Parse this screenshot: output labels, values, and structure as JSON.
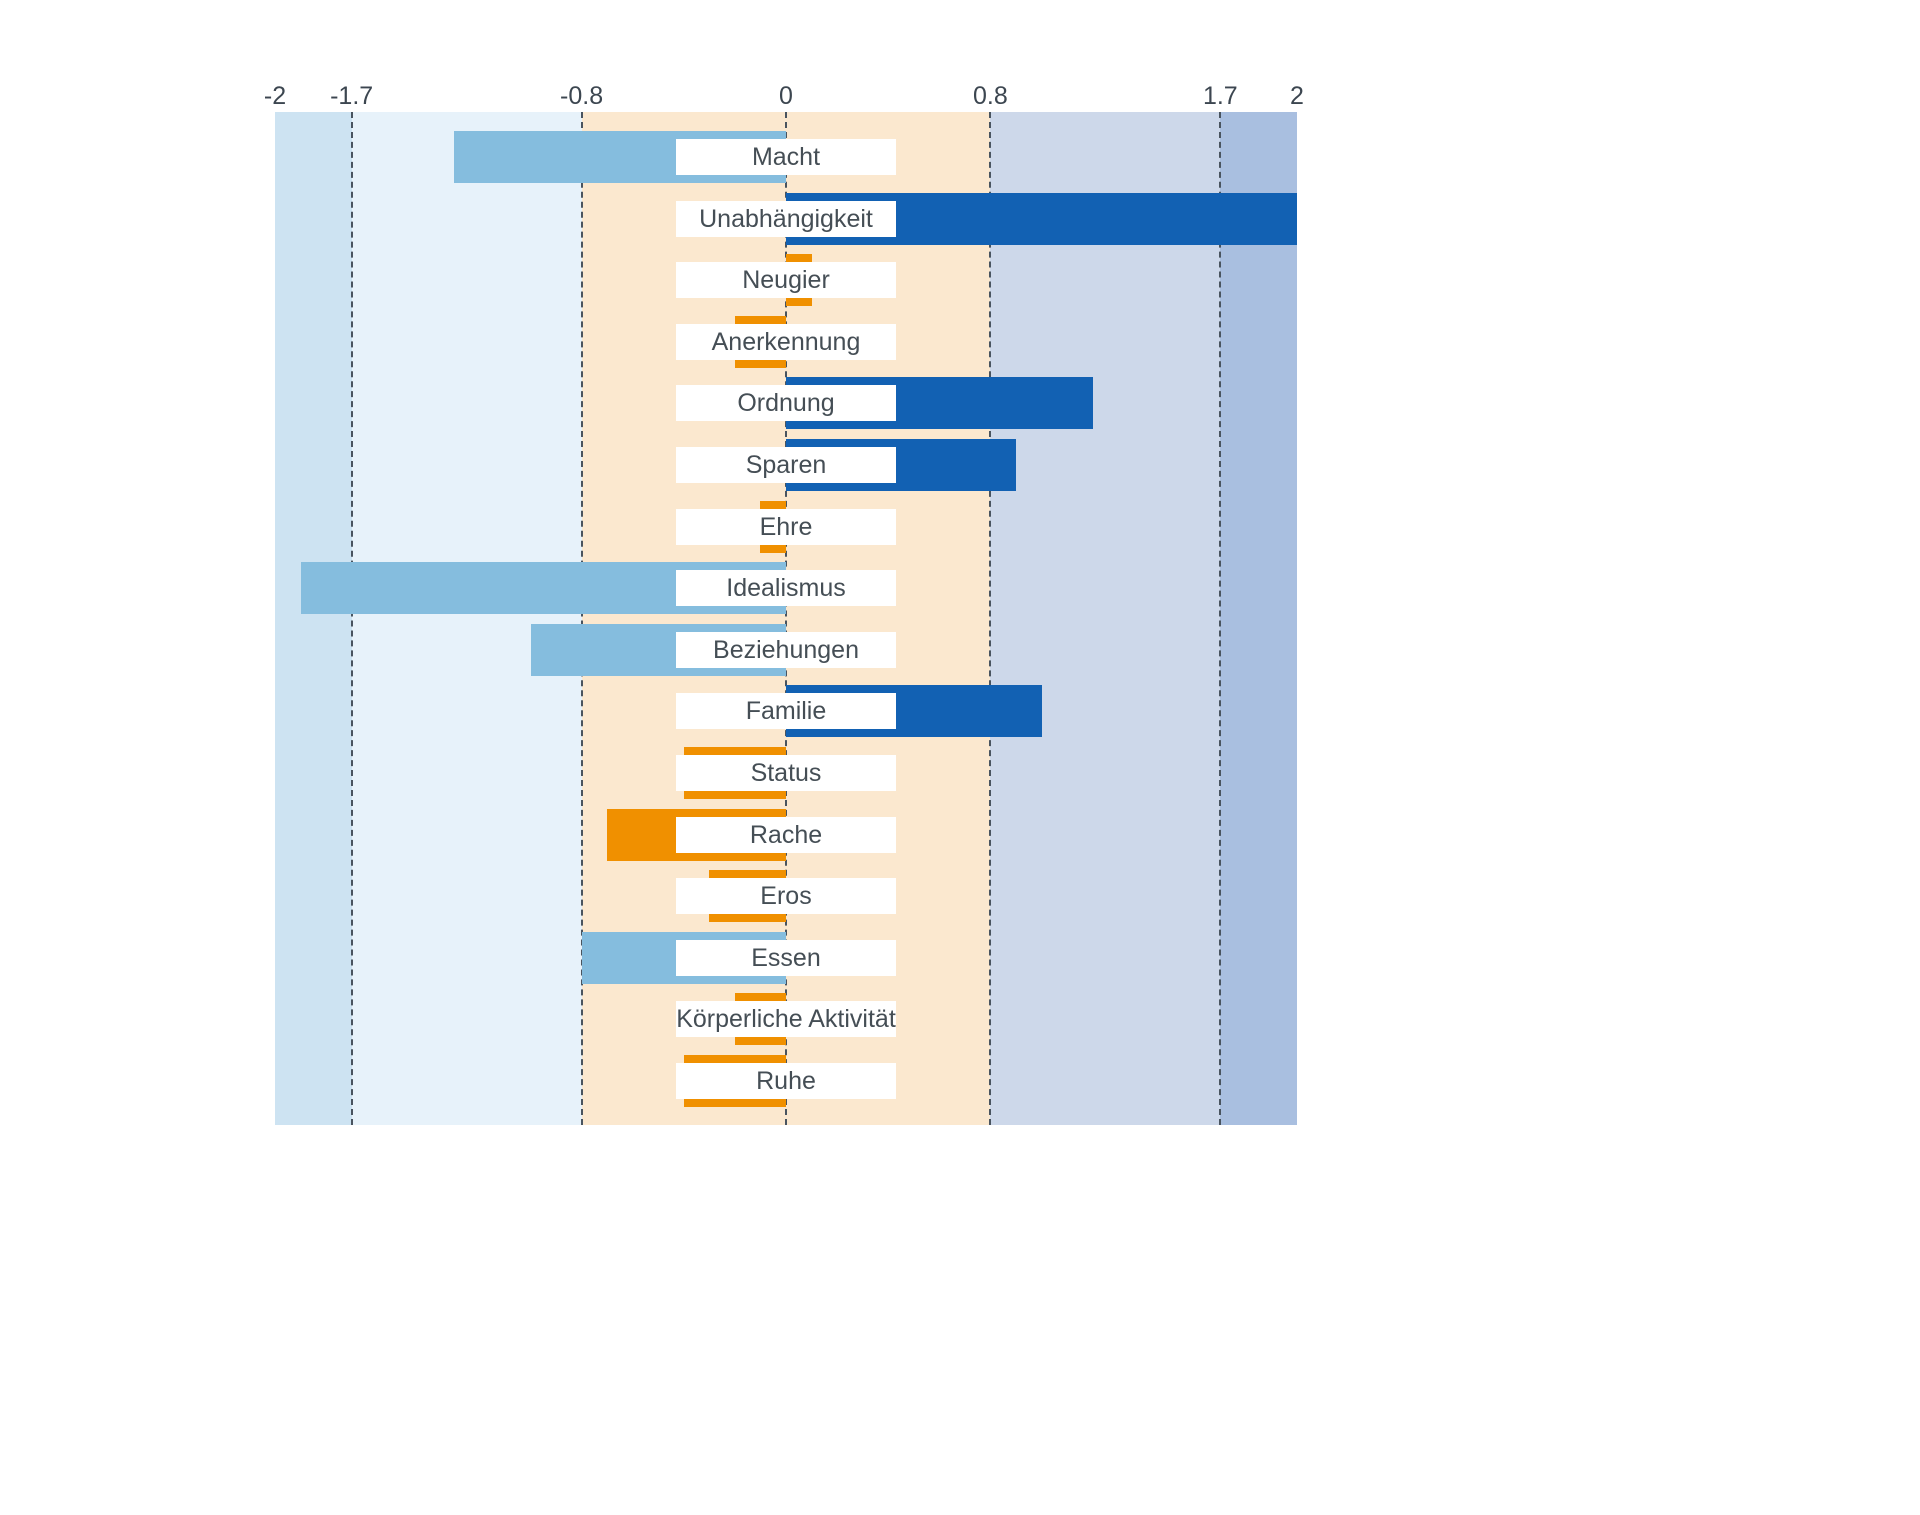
{
  "chart_data": {
    "type": "bar",
    "orientation": "horizontal",
    "title": "",
    "xlabel": "",
    "ylabel": "",
    "xlim": [
      -2,
      2
    ],
    "x_ticks": [
      -2,
      -1.7,
      -0.8,
      0,
      0.8,
      1.7,
      2
    ],
    "x_tick_labels": [
      "-2",
      "-1.7",
      "-0.8",
      "0",
      "0.8",
      "1.7",
      "2"
    ],
    "gridlines_at": [
      -1.7,
      -0.8,
      0,
      0.8,
      1.7
    ],
    "grid": "dashed-vertical",
    "legend": "none",
    "zones": [
      {
        "from": -2.0,
        "to": -1.7,
        "color": "#cde3f2"
      },
      {
        "from": -1.7,
        "to": -0.8,
        "color": "#e7f2fa"
      },
      {
        "from": -0.8,
        "to": 0.8,
        "color": "#fbe8cf"
      },
      {
        "from": 0.8,
        "to": 1.7,
        "color": "#cdd8ea"
      },
      {
        "from": 1.7,
        "to": 2.0,
        "color": "#a9bfe0"
      }
    ],
    "bar_colors": {
      "low_below_-0.8": "#85bdde",
      "mid_between": "#f09000",
      "high_above_0.8": "#1261b3"
    },
    "categories": [
      "Macht",
      "Unabhängigkeit",
      "Neugier",
      "Anerkennung",
      "Ordnung",
      "Sparen",
      "Ehre",
      "Idealismus",
      "Beziehungen",
      "Familie",
      "Status",
      "Rache",
      "Eros",
      "Essen",
      "Körperliche Aktivität",
      "Ruhe"
    ],
    "values": [
      -1.3,
      2.0,
      0.1,
      -0.2,
      1.2,
      0.9,
      -0.1,
      -1.9,
      -1.0,
      1.0,
      -0.4,
      -0.7,
      -0.3,
      -0.8,
      -0.2,
      -0.4
    ]
  }
}
